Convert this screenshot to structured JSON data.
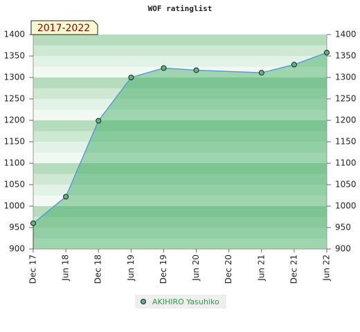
{
  "chart_data": {
    "type": "area",
    "title": "WOF ratinglist",
    "badge": "2017-2022",
    "categories": [
      "Dec 17",
      "Jun 18",
      "Dec 18",
      "Jun 19",
      "Dec 19",
      "Jun 20",
      "Dec 20",
      "Jun 21",
      "Dec 21",
      "Jun 22"
    ],
    "series": [
      {
        "name": "AKIHIRO Yasuhiko",
        "color": "#5b9bd5",
        "x": [
          "Dec 17",
          "Jun 18",
          "Dec 18",
          "Jun 19",
          "Dec 19",
          "Jun 20",
          "Jun 21",
          "Dec 21",
          "Jun 22"
        ],
        "values": [
          960,
          1022,
          1199,
          1300,
          1322,
          1317,
          1311,
          1330,
          1358
        ]
      }
    ],
    "ylim": [
      900,
      1400
    ],
    "yticks": [
      900,
      950,
      1000,
      1050,
      1100,
      1150,
      1200,
      1250,
      1300,
      1350,
      1400
    ],
    "y2lim": [
      900,
      1400
    ],
    "y2ticks": [
      900,
      950,
      1000,
      1050,
      1100,
      1150,
      1200,
      1250,
      1300,
      1350,
      1400
    ]
  }
}
